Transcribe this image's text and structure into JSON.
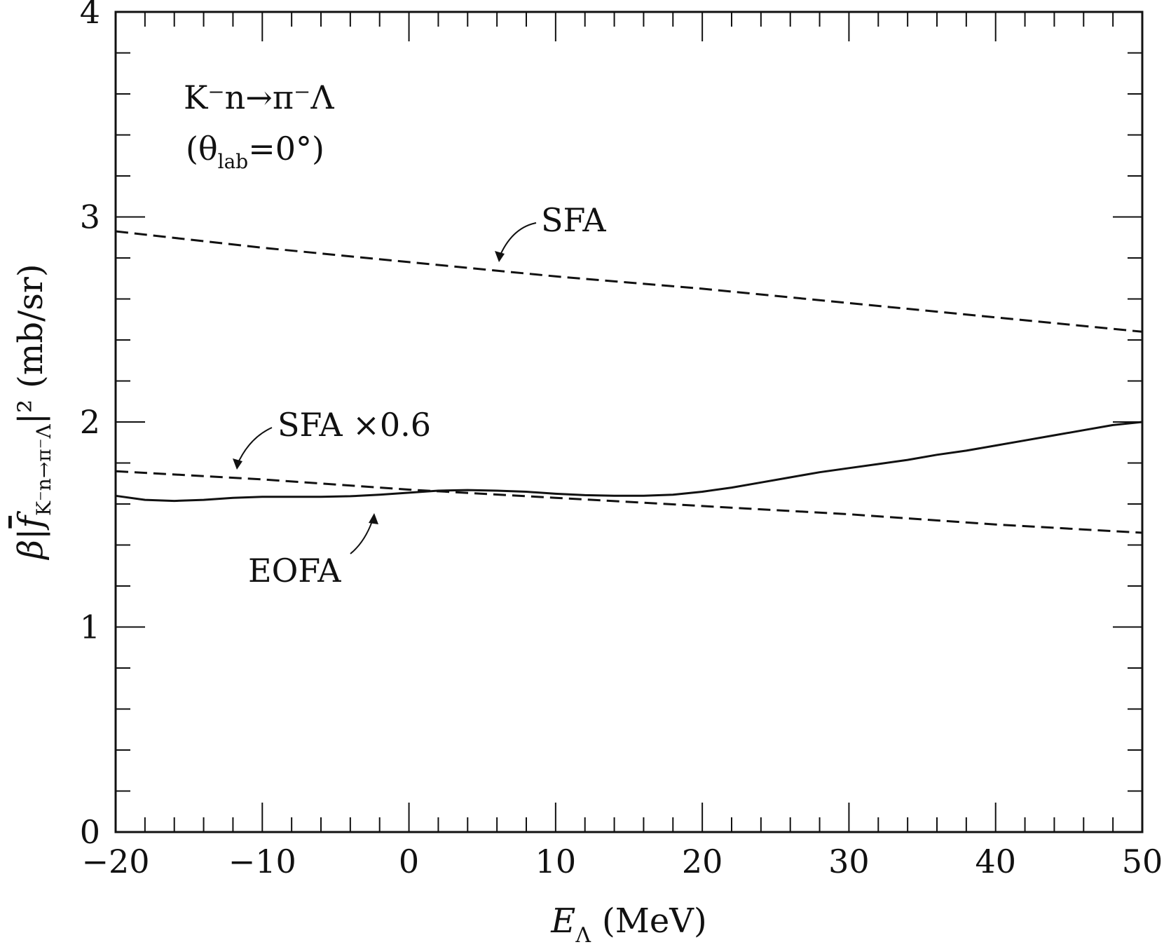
{
  "chart_data": {
    "type": "line",
    "xlabel": {
      "var": "E",
      "sub": "Λ",
      "unit": "(MeV)"
    },
    "ylabel": {
      "beta": "β|",
      "f": "f",
      "sub": "K⁻n→π⁻Λ",
      "sup": "|²",
      "unit": "(mb/sr)"
    },
    "xlim": [
      -20,
      50
    ],
    "ylim": [
      0,
      4
    ],
    "x_ticks": [
      -20,
      -10,
      0,
      10,
      20,
      30,
      40,
      50
    ],
    "x_tick_labels": [
      "−20",
      "−10",
      "0",
      "10",
      "20",
      "30",
      "40",
      "50"
    ],
    "y_ticks": [
      0,
      1,
      2,
      3,
      4
    ],
    "y_tick_labels": [
      "0",
      "1",
      "2",
      "3",
      "4"
    ],
    "x_minor_step": 2,
    "y_minor_step": 0.2,
    "grid": false,
    "annotations": {
      "reaction": "K⁻n→π⁻Λ",
      "angle_open": "(θ",
      "angle_sub": "lab",
      "angle_close": "=0°)",
      "sfa_label": "SFA",
      "sfa06_label": "SFA ×0.6",
      "eofa_label": "EOFA"
    },
    "series": [
      {
        "name": "SFA",
        "style": "dashed",
        "color": "#111111",
        "x": [
          -20,
          -10,
          0,
          10,
          20,
          30,
          40,
          50
        ],
        "y": [
          2.93,
          2.85,
          2.78,
          2.71,
          2.65,
          2.58,
          2.51,
          2.44
        ]
      },
      {
        "name": "SFA ×0.6",
        "style": "dashed",
        "color": "#111111",
        "x": [
          -20,
          -10,
          0,
          10,
          20,
          30,
          40,
          50
        ],
        "y": [
          1.76,
          1.72,
          1.67,
          1.63,
          1.59,
          1.55,
          1.5,
          1.46
        ]
      },
      {
        "name": "EOFA",
        "style": "solid",
        "color": "#111111",
        "x": [
          -20,
          -18,
          -16,
          -14,
          -12,
          -10,
          -8,
          -6,
          -4,
          -2,
          0,
          2,
          4,
          6,
          8,
          10,
          12,
          14,
          16,
          18,
          20,
          22,
          24,
          26,
          28,
          30,
          32,
          34,
          36,
          38,
          40,
          42,
          44,
          46,
          48,
          50
        ],
        "y": [
          1.64,
          1.62,
          1.615,
          1.62,
          1.63,
          1.635,
          1.635,
          1.635,
          1.638,
          1.645,
          1.655,
          1.665,
          1.668,
          1.665,
          1.66,
          1.65,
          1.643,
          1.64,
          1.64,
          1.645,
          1.66,
          1.68,
          1.705,
          1.73,
          1.755,
          1.775,
          1.795,
          1.815,
          1.84,
          1.86,
          1.885,
          1.91,
          1.935,
          1.96,
          1.985,
          2.0
        ]
      }
    ]
  }
}
